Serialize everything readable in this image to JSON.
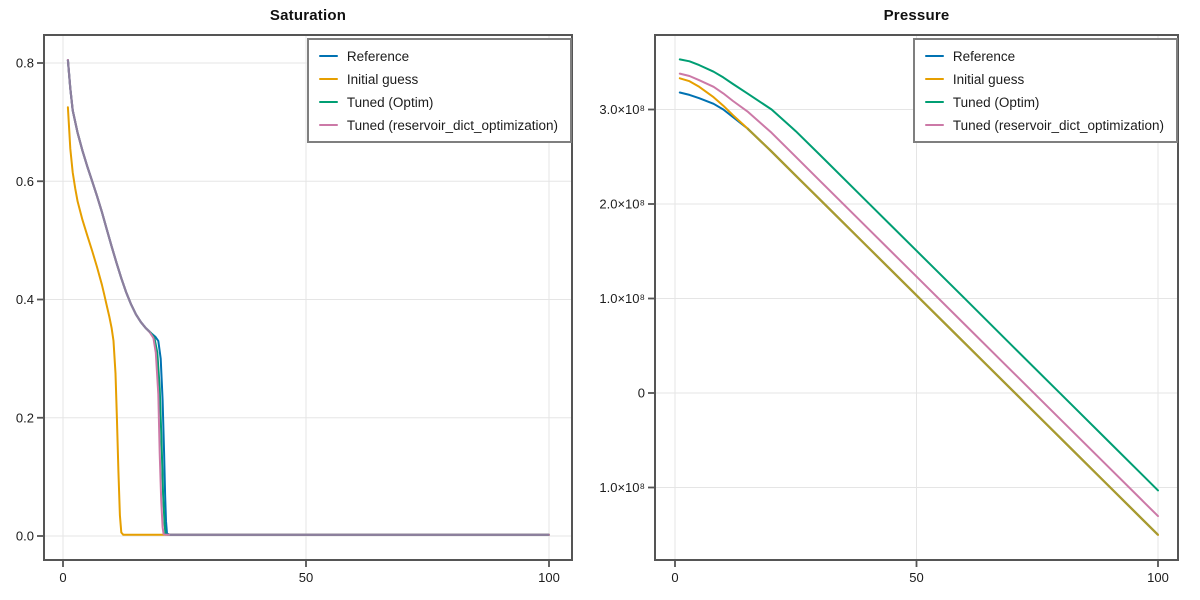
{
  "figure": {
    "background": "#ffffff",
    "grid_color": "#e5e5e5",
    "spine_color": "#555555",
    "text_color": "#1c1c1c",
    "overlap_colors": {
      "saturation_reference_tuned_overlap": "#8c7f9e",
      "pressure_reference_initial_overlap": "#a89b30"
    }
  },
  "legend": {
    "border_color": "#7f7f7f",
    "background": "#ffffff",
    "position": "top-right",
    "entries": [
      {
        "label": "Reference",
        "color": "#0072B2"
      },
      {
        "label": "Initial guess",
        "color": "#E69F00"
      },
      {
        "label": "Tuned (Optim)",
        "color": "#009E73"
      },
      {
        "label": "Tuned (reservoir_dict_optimization)",
        "color": "#CC79A7"
      }
    ]
  },
  "chart_data": [
    {
      "type": "line",
      "title": "Saturation",
      "xlabel": "",
      "ylabel": "",
      "xlim": [
        -4,
        104.7
      ],
      "ylim": [
        -0.041,
        0.847
      ],
      "grid": true,
      "legend_position": "top-right",
      "xticks": [
        {
          "value": 0,
          "label": "0"
        },
        {
          "value": 50,
          "label": "50"
        },
        {
          "value": 100,
          "label": "100"
        }
      ],
      "yticks": [
        {
          "value": 0.0,
          "label": "0.0"
        },
        {
          "value": 0.2,
          "label": "0.2"
        },
        {
          "value": 0.4,
          "label": "0.4"
        },
        {
          "value": 0.6,
          "label": "0.6"
        },
        {
          "value": 0.8,
          "label": "0.8"
        }
      ],
      "series": [
        {
          "name": "Reference",
          "color": "#0072B2",
          "x": [
            1,
            1.5,
            2,
            3,
            4,
            5,
            6,
            7,
            8,
            9,
            10,
            11,
            12,
            13,
            14,
            15,
            16,
            17,
            18,
            19,
            19.6,
            20.1,
            20.5,
            20.8,
            21.0,
            21.2,
            21.4,
            22,
            30,
            60,
            100
          ],
          "y": [
            0.805,
            0.757,
            0.72,
            0.682,
            0.652,
            0.625,
            0.6,
            0.575,
            0.548,
            0.519,
            0.49,
            0.462,
            0.436,
            0.412,
            0.392,
            0.375,
            0.362,
            0.352,
            0.344,
            0.337,
            0.33,
            0.3,
            0.23,
            0.14,
            0.07,
            0.025,
            0.004,
            0.002,
            0.002,
            0.002,
            0.002
          ]
        },
        {
          "name": "Initial guess",
          "color": "#E69F00",
          "x": [
            1,
            1.5,
            2,
            2.5,
            3,
            4,
            5,
            6,
            7,
            8,
            8.5,
            9,
            9.5,
            10,
            10.4,
            10.8,
            11.1,
            11.4,
            11.7,
            12.0,
            12.4,
            20,
            60,
            100
          ],
          "y": [
            0.725,
            0.655,
            0.615,
            0.588,
            0.566,
            0.535,
            0.508,
            0.482,
            0.455,
            0.425,
            0.408,
            0.39,
            0.372,
            0.352,
            0.33,
            0.275,
            0.2,
            0.11,
            0.035,
            0.006,
            0.002,
            0.002,
            0.002,
            0.002
          ]
        },
        {
          "name": "Tuned (Optim)",
          "color": "#009E73",
          "x": [
            1,
            1.5,
            2,
            3,
            4,
            5,
            6,
            7,
            8,
            9,
            10,
            11,
            12,
            13,
            14,
            15,
            16,
            17,
            18,
            18.8,
            19.4,
            19.9,
            20.3,
            20.6,
            20.9,
            21.1,
            21.6,
            30,
            60,
            100
          ],
          "y": [
            0.805,
            0.757,
            0.72,
            0.682,
            0.652,
            0.625,
            0.6,
            0.575,
            0.548,
            0.519,
            0.49,
            0.462,
            0.436,
            0.412,
            0.392,
            0.375,
            0.362,
            0.352,
            0.344,
            0.335,
            0.31,
            0.25,
            0.15,
            0.07,
            0.02,
            0.003,
            0.002,
            0.002,
            0.002,
            0.002
          ]
        },
        {
          "name": "Tuned (reservoir_dict_optimization)",
          "color": "#CC79A7",
          "x": [
            1,
            1.5,
            2,
            3,
            4,
            5,
            6,
            7,
            8,
            9,
            10,
            11,
            12,
            13,
            14,
            15,
            16,
            17,
            17.8,
            18.6,
            19.1,
            19.6,
            19.9,
            20.2,
            20.5,
            20.7,
            21.2,
            30,
            60,
            100
          ],
          "y": [
            0.805,
            0.757,
            0.72,
            0.682,
            0.652,
            0.625,
            0.6,
            0.575,
            0.548,
            0.519,
            0.49,
            0.462,
            0.436,
            0.412,
            0.392,
            0.375,
            0.362,
            0.352,
            0.345,
            0.335,
            0.31,
            0.24,
            0.14,
            0.06,
            0.015,
            0.003,
            0.002,
            0.002,
            0.002,
            0.002
          ]
        }
      ]
    },
    {
      "type": "line",
      "title": "Pressure",
      "xlabel": "",
      "ylabel": "",
      "xlim": [
        -2,
        104.5
      ],
      "ylim": [
        -177000000.0,
        379000000.0
      ],
      "grid": true,
      "legend_position": "top-right",
      "xticks": [
        {
          "value": 0,
          "label": "0"
        },
        {
          "value": 50,
          "label": "50"
        },
        {
          "value": 100,
          "label": "100"
        }
      ],
      "yticks": [
        {
          "value": -100000000.0,
          "label": "−1.0×10⁸"
        },
        {
          "value": 0,
          "label": "0"
        },
        {
          "value": 100000000.0,
          "label": "1.0×10⁸"
        },
        {
          "value": 200000000.0,
          "label": "2.0×10⁸"
        },
        {
          "value": 300000000.0,
          "label": "3.0×10⁸"
        }
      ],
      "series": [
        {
          "name": "Reference",
          "color": "#0072B2",
          "x": [
            1,
            3,
            5,
            8,
            10,
            12,
            15,
            20,
            25,
            30,
            40,
            50,
            60,
            70,
            80,
            90,
            100
          ],
          "y": [
            318000000.0,
            315500000.0,
            312000000.0,
            306000000.0,
            300000000.0,
            292000000.0,
            280000000.0,
            255500000.0,
            230000000.0,
            204800000.0,
            154100000.0,
            103400000.0,
            52700000.0,
            2000000.0,
            -48700000.0,
            -99400000.0,
            -150100000.0
          ]
        },
        {
          "name": "Initial guess",
          "color": "#E69F00",
          "x": [
            1,
            3,
            5,
            8,
            10,
            12,
            15,
            20,
            25,
            30,
            40,
            50,
            60,
            70,
            80,
            90,
            100
          ],
          "y": [
            333000000.0,
            330000000.0,
            324000000.0,
            313000000.0,
            304000000.0,
            294000000.0,
            280000000.0,
            255500000.0,
            230000000.0,
            204800000.0,
            154100000.0,
            103400000.0,
            52700000.0,
            2000000.0,
            -48700000.0,
            -99400000.0,
            -150100000.0
          ]
        },
        {
          "name": "Tuned (Optim)",
          "color": "#009E73",
          "x": [
            1,
            3,
            5,
            8,
            10,
            12,
            15,
            20,
            25,
            30,
            40,
            50,
            60,
            70,
            80,
            90,
            100
          ],
          "y": [
            353000000.0,
            351000000.0,
            347000000.0,
            340000000.0,
            334000000.0,
            327000000.0,
            317000000.0,
            300000000.0,
            277000000.0,
            252000000.0,
            201300000.0,
            150600000.0,
            99900000.0,
            49000000.0,
            -1700000.0,
            -52400000.0,
            -103100000.0
          ]
        },
        {
          "name": "Tuned (reservoir_dict_optimization)",
          "color": "#CC79A7",
          "x": [
            1,
            3,
            5,
            8,
            10,
            12,
            15,
            20,
            25,
            30,
            40,
            50,
            60,
            70,
            80,
            90,
            100
          ],
          "y": [
            338000000.0,
            335500000.0,
            331000000.0,
            324000000.0,
            317000000.0,
            309000000.0,
            298000000.0,
            275300000.0,
            250000000.0,
            224600000.0,
            173900000.0,
            123200000.0,
            72500000.0,
            21800000.0,
            -28900000.0,
            -79600000.0,
            -130300000.0
          ]
        }
      ]
    }
  ]
}
